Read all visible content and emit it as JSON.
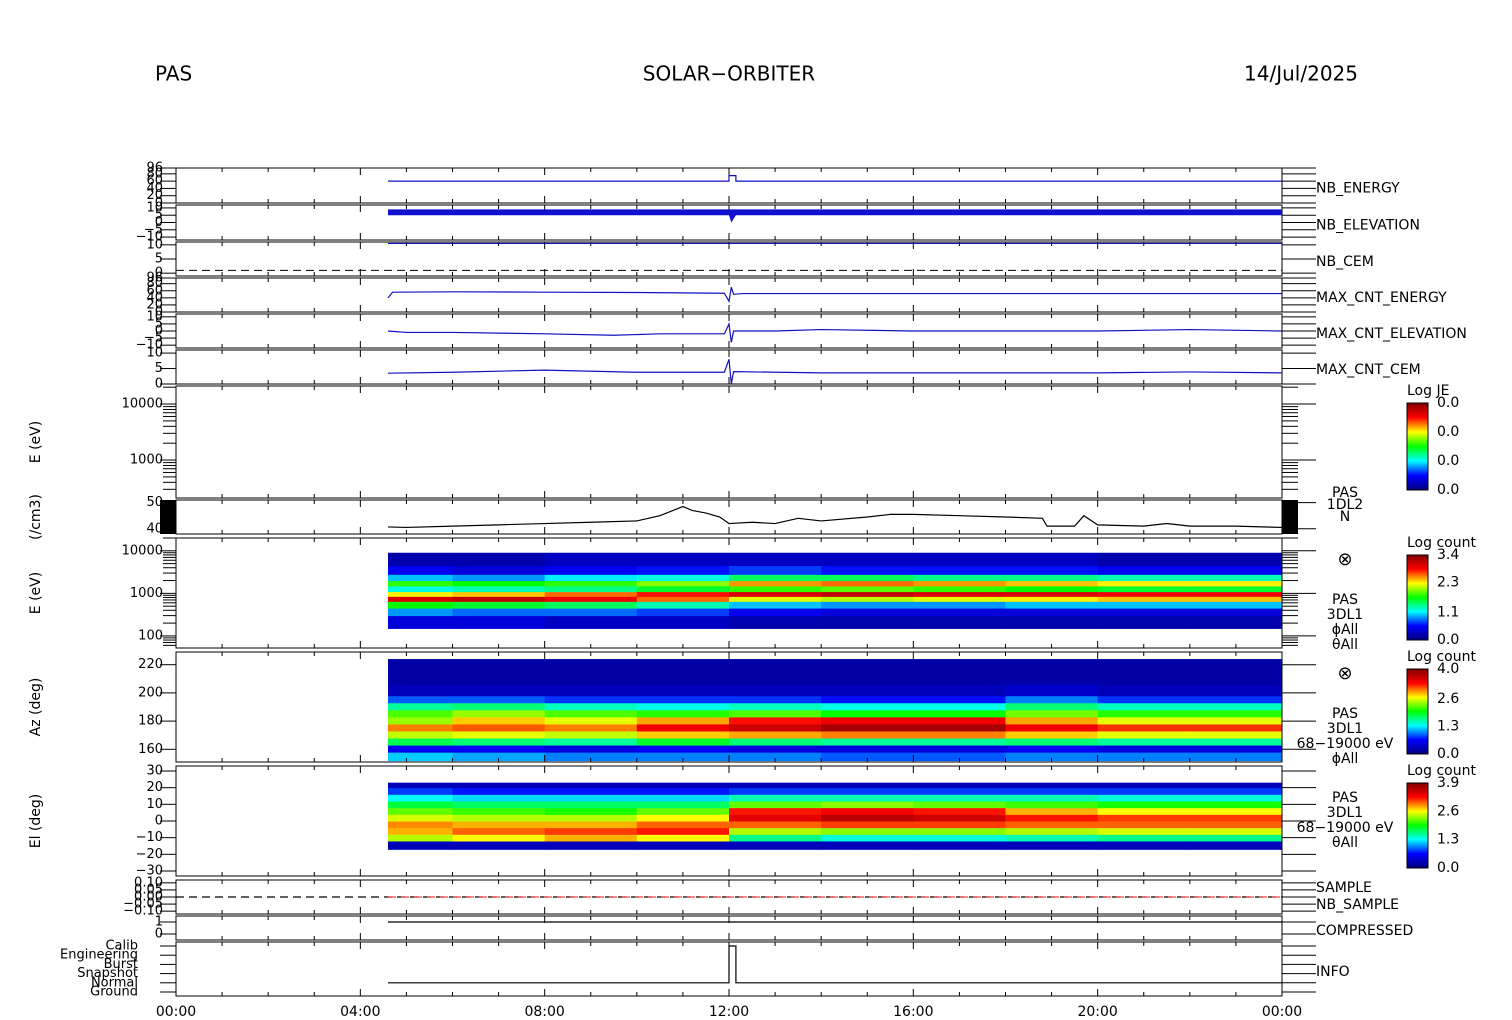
{
  "header": {
    "left": "PAS",
    "center": "SOLAR−ORBITER",
    "right": "14/Jul/2025"
  },
  "time_axis": {
    "xlim": [
      0,
      24
    ],
    "xticks": [
      {
        "value": 0,
        "label": "00:00"
      },
      {
        "value": 4,
        "label": "04:00"
      },
      {
        "value": 8,
        "label": "08:00"
      },
      {
        "value": 12,
        "label": "12:00"
      },
      {
        "value": 16,
        "label": "16:00"
      },
      {
        "value": 20,
        "label": "20:00"
      },
      {
        "value": 24,
        "label": "00:00"
      }
    ]
  },
  "colormap": [
    "#000080",
    "#0000ff",
    "#00ffff",
    "#00ff00",
    "#ffff00",
    "#ff0000",
    "#800000"
  ],
  "chart_data": [
    {
      "type": "line",
      "label": "NB_ENERGY",
      "label_color": "#2020c0",
      "ylim": [
        0,
        96
      ],
      "yticks": [
        0,
        20,
        40,
        60,
        80,
        96
      ],
      "series": [
        {
          "color": "#1010c0",
          "x": [
            4.6,
            12.0,
            12.0,
            12.15,
            12.15,
            24
          ],
          "values": [
            60,
            60,
            75,
            75,
            60,
            60
          ]
        }
      ]
    },
    {
      "type": "band",
      "label": "NB_ELEVATION",
      "label_color": "#2020c0",
      "color": "#1010d0",
      "ylim": [
        -12,
        12
      ],
      "yticks": [
        {
          "value": -10,
          "label": "−10"
        },
        {
          "value": -5,
          "label": "−5"
        },
        0,
        5,
        10
      ],
      "x": [
        4.6,
        12.0,
        12.05,
        12.15,
        24
      ],
      "low": [
        5,
        5,
        0,
        5,
        5
      ],
      "high": [
        9,
        9,
        9,
        9,
        9
      ]
    },
    {
      "type": "line",
      "label": "NB_CEM",
      "label_color": "#2020c0",
      "ylim": [
        -1,
        11
      ],
      "yticks": [
        0,
        5,
        10
      ],
      "reference_line": 1,
      "series": [
        {
          "color": "#1010c0",
          "x": [
            4.6,
            24
          ],
          "values": [
            10.5,
            10.5
          ]
        }
      ]
    },
    {
      "type": "line",
      "label": "MAX_CNT_ENERGY",
      "label_color": "#2020c0",
      "ylim": [
        0,
        96
      ],
      "yticks": [
        0,
        20,
        40,
        60,
        80,
        96
      ],
      "series": [
        {
          "color": "#1010c0",
          "x": [
            4.6,
            4.7,
            6,
            8,
            10,
            11.9,
            12.0,
            12.05,
            12.1,
            12.3,
            14,
            16,
            18,
            20,
            22,
            24
          ],
          "values": [
            40,
            56,
            57,
            56,
            55,
            53,
            30,
            70,
            50,
            52,
            52,
            52,
            52,
            52,
            52,
            52
          ]
        }
      ]
    },
    {
      "type": "line",
      "label": "MAX_CNT_ELEVATION",
      "label_color": "#2020c0",
      "ylim": [
        -12,
        12
      ],
      "yticks": [
        {
          "value": -10,
          "label": "−10"
        },
        {
          "value": -5,
          "label": "−5"
        },
        0,
        5,
        10
      ],
      "series": [
        {
          "color": "#1010c0",
          "x": [
            4.6,
            5,
            6,
            8,
            9.5,
            10.5,
            11.9,
            12.0,
            12.05,
            12.1,
            13,
            14,
            16,
            18,
            20,
            22,
            24
          ],
          "values": [
            0,
            -1,
            -1,
            -2,
            -3,
            -2,
            -2,
            5,
            -8,
            0,
            0,
            1,
            0,
            0,
            0,
            1,
            0
          ]
        }
      ]
    },
    {
      "type": "line",
      "label": "MAX_CNT_CEM",
      "label_color": "#2020c0",
      "ylim": [
        0,
        11
      ],
      "yticks": [
        0,
        5,
        10
      ],
      "series": [
        {
          "color": "#1010c0",
          "x": [
            4.6,
            6,
            8,
            10,
            11.9,
            12.0,
            12.05,
            12.1,
            14,
            16,
            18,
            20,
            22,
            24
          ],
          "values": [
            3.5,
            3.8,
            4.5,
            3.8,
            3.8,
            8,
            0,
            4,
            3.6,
            3.6,
            3.6,
            3.6,
            3.9,
            3.6
          ]
        }
      ]
    },
    {
      "type": "heatmap",
      "ylabel": "E (eV)",
      "log": true,
      "ylim": [
        210,
        21000
      ],
      "yticks": [
        1000,
        10000
      ],
      "colorbar_title": "Log JE",
      "colorbar_labels": [
        "0.0",
        "0.0",
        "0.0",
        "0.0"
      ],
      "values": []
    },
    {
      "type": "line",
      "ylabel": "(/cm3)",
      "ylim": [
        38,
        51
      ],
      "yticks": [
        40,
        50
      ],
      "mask_color": "#000000",
      "side_labels": [
        "PAS",
        "1DL2",
        "N"
      ],
      "series": [
        {
          "color": "#000000",
          "x": [
            4.6,
            5,
            6,
            7,
            8,
            9,
            10,
            10.5,
            11,
            11.2,
            11.5,
            11.8,
            12,
            12.5,
            13,
            13.5,
            14,
            15,
            15.5,
            16,
            17,
            18,
            18.8,
            18.9,
            19.5,
            19.7,
            20,
            21,
            21.5,
            22,
            23,
            24
          ],
          "values": [
            40.7,
            40.5,
            41,
            41.5,
            42,
            42.5,
            43,
            45,
            48.5,
            47,
            46,
            44.5,
            42,
            42.5,
            42,
            44,
            43,
            44.5,
            45.5,
            45.5,
            45,
            44.5,
            44,
            41,
            41,
            45,
            41.5,
            41,
            42,
            41,
            41,
            40.5
          ]
        }
      ]
    },
    {
      "type": "heatmap",
      "ylabel": "E (eV)",
      "log": true,
      "ylim": [
        52,
        20000
      ],
      "yticks": [
        100,
        1000,
        10000
      ],
      "colorbar_title": "Log count",
      "clim": [
        0,
        3.4
      ],
      "colorbar_ticks": [
        {
          "value": 0,
          "label": "0.0"
        },
        1.1,
        2.3,
        3.4
      ],
      "marker": "⊗",
      "side_labels": [
        "PAS",
        "3DL1",
        "ϕAll",
        "θAll"
      ],
      "x_edges": [
        4.6,
        6,
        8,
        10,
        12,
        14,
        16,
        18,
        20,
        22,
        24
      ],
      "y_edges": [
        150,
        300,
        450,
        650,
        850,
        1100,
        1500,
        2000,
        2800,
        4500,
        9000
      ],
      "values": [
        [
          0.4,
          0.9,
          1.7,
          3.0,
          2.3,
          1.2,
          1.8,
          1.0,
          0.5,
          0.2
        ],
        [
          0.4,
          0.8,
          1.6,
          3.1,
          2.4,
          1.3,
          1.7,
          0.9,
          0.4,
          0.2
        ],
        [
          0.3,
          0.8,
          1.5,
          2.9,
          2.6,
          1.4,
          1.8,
          1.1,
          0.5,
          0.3
        ],
        [
          0.3,
          0.7,
          1.3,
          2.6,
          2.8,
          1.6,
          2.0,
          1.2,
          0.6,
          0.3
        ],
        [
          0.2,
          0.5,
          1.0,
          2.2,
          3.0,
          1.8,
          2.5,
          1.5,
          0.7,
          0.3
        ],
        [
          0.2,
          0.4,
          0.9,
          2.1,
          3.1,
          1.9,
          2.6,
          1.5,
          0.6,
          0.3
        ],
        [
          0.2,
          0.4,
          0.9,
          2.2,
          3.0,
          1.8,
          2.5,
          1.4,
          0.6,
          0.3
        ],
        [
          0.2,
          0.4,
          1.0,
          2.3,
          3.0,
          1.7,
          2.4,
          1.4,
          0.6,
          0.3
        ],
        [
          0.2,
          0.4,
          1.0,
          2.4,
          2.9,
          1.6,
          2.3,
          1.3,
          0.5,
          0.2
        ],
        [
          0.2,
          0.4,
          1.0,
          2.4,
          2.9,
          1.6,
          2.3,
          1.3,
          0.5,
          0.2
        ]
      ]
    },
    {
      "type": "heatmap",
      "ylabel": "Az (deg)",
      "ylim": [
        151,
        229
      ],
      "yticks": [
        160,
        180,
        200,
        220
      ],
      "colorbar_title": "Log count",
      "clim": [
        0,
        4.0
      ],
      "colorbar_ticks": [
        {
          "value": 0,
          "label": "0.0"
        },
        1.3,
        2.6,
        {
          "value": 4.0,
          "label": "4.0"
        }
      ],
      "marker": "⊗",
      "side_labels": [
        "PAS",
        "3DL1",
        "68−19000 eV",
        "ϕAll"
      ],
      "x_edges": [
        4.6,
        6,
        8,
        10,
        12,
        14,
        16,
        18,
        20,
        22,
        24
      ],
      "y_edges": [
        152,
        158,
        163,
        168,
        173,
        178,
        183,
        188,
        193,
        198,
        206,
        224
      ],
      "values": [
        [
          1.2,
          0.6,
          1.8,
          2.5,
          3.0,
          2.4,
          2.2,
          1.6,
          0.9,
          0.3,
          0.2
        ],
        [
          1.1,
          0.6,
          1.7,
          2.6,
          3.1,
          2.8,
          2.4,
          1.7,
          0.9,
          0.3,
          0.2
        ],
        [
          1.0,
          0.5,
          1.6,
          2.5,
          3.0,
          2.6,
          2.2,
          1.5,
          0.8,
          0.3,
          0.2
        ],
        [
          1.0,
          0.6,
          1.9,
          2.8,
          3.4,
          2.9,
          2.1,
          1.4,
          0.8,
          0.3,
          0.2
        ],
        [
          1.0,
          0.5,
          1.7,
          2.9,
          3.6,
          3.3,
          2.2,
          1.5,
          0.8,
          0.3,
          0.2
        ],
        [
          0.9,
          0.5,
          1.6,
          3.0,
          3.8,
          3.4,
          2.0,
          1.4,
          0.7,
          0.3,
          0.2
        ],
        [
          0.9,
          0.5,
          1.6,
          3.0,
          3.8,
          3.4,
          2.0,
          1.4,
          0.7,
          0.3,
          0.2
        ],
        [
          1.0,
          0.6,
          1.7,
          2.8,
          3.4,
          2.9,
          2.3,
          1.7,
          1.0,
          0.4,
          0.2
        ],
        [
          1.0,
          0.5,
          1.6,
          2.6,
          3.2,
          2.6,
          2.1,
          1.5,
          0.8,
          0.3,
          0.2
        ],
        [
          1.0,
          0.5,
          1.6,
          2.6,
          3.2,
          2.6,
          2.1,
          1.5,
          0.8,
          0.3,
          0.2
        ]
      ]
    },
    {
      "type": "heatmap",
      "ylabel": "El (deg)",
      "ylim": [
        -33,
        33
      ],
      "yticks": [
        {
          "value": -30,
          "label": "−30"
        },
        {
          "value": -20,
          "label": "−20"
        },
        {
          "value": -10,
          "label": "−10"
        },
        0,
        10,
        20,
        30
      ],
      "colorbar_title": "Log count",
      "clim": [
        0,
        3.9
      ],
      "colorbar_ticks": [
        {
          "value": 0,
          "label": "0.0"
        },
        1.3,
        2.6,
        3.9
      ],
      "side_labels": [
        "PAS",
        "3DL1",
        "68−19000 eV",
        "θAll"
      ],
      "x_edges": [
        4.6,
        6,
        8,
        10,
        12,
        14,
        16,
        18,
        20,
        22,
        24
      ],
      "y_edges": [
        -17,
        -12,
        -8,
        -4,
        0,
        4,
        8,
        12,
        16,
        20,
        23
      ],
      "values": [
        [
          0.3,
          2.4,
          2.8,
          2.9,
          2.5,
          2.2,
          1.8,
          1.3,
          0.8,
          0.3
        ],
        [
          0.3,
          2.6,
          3.0,
          2.8,
          2.4,
          2.1,
          1.7,
          1.2,
          0.7,
          0.3
        ],
        [
          0.3,
          2.8,
          3.1,
          2.8,
          2.4,
          2.0,
          1.7,
          1.2,
          0.7,
          0.3
        ],
        [
          0.3,
          2.6,
          3.2,
          3.0,
          2.6,
          2.2,
          1.7,
          1.2,
          0.7,
          0.3
        ],
        [
          0.3,
          1.6,
          2.4,
          3.0,
          3.4,
          3.2,
          2.2,
          1.5,
          0.8,
          0.3
        ],
        [
          0.3,
          1.4,
          2.3,
          3.1,
          3.6,
          3.3,
          2.3,
          1.5,
          0.8,
          0.3
        ],
        [
          0.3,
          1.4,
          2.3,
          3.1,
          3.5,
          3.2,
          2.2,
          1.5,
          0.8,
          0.3
        ],
        [
          0.3,
          1.5,
          2.4,
          3.0,
          3.2,
          2.8,
          2.1,
          1.5,
          0.8,
          0.3
        ],
        [
          0.3,
          1.6,
          2.5,
          3.0,
          3.1,
          2.6,
          2.0,
          1.4,
          0.8,
          0.3
        ],
        [
          0.3,
          1.6,
          2.5,
          3.0,
          3.1,
          2.6,
          2.0,
          1.4,
          0.8,
          0.3
        ]
      ]
    },
    {
      "type": "line",
      "ylim": [
        -0.12,
        0.12
      ],
      "yticks": [
        {
          "value": -0.1,
          "label": "−0.10"
        },
        {
          "value": -0.05,
          "label": "−0.05"
        },
        {
          "value": 0,
          "label": "0.00"
        },
        {
          "value": 0.05,
          "label": "0.05"
        },
        {
          "value": 0.1,
          "label": "0.10"
        }
      ],
      "label_colors": [
        "#2020c0",
        "#ff2020"
      ],
      "series": [
        {
          "name": "SAMPLE",
          "color": "#000000",
          "dash": true,
          "x": [
            0,
            24
          ],
          "values": [
            0,
            0
          ]
        },
        {
          "name": "NB_SAMPLE",
          "color": "#ff4040",
          "dash": true,
          "x": [
            4.6,
            24
          ],
          "values": [
            0,
            0
          ]
        }
      ]
    },
    {
      "type": "line",
      "label": "COMPRESSED",
      "label_color": "#2020c0",
      "ylim": [
        -0.5,
        1.5
      ],
      "yticks": [
        0,
        1
      ],
      "series": [
        {
          "color": "#000000",
          "x": [
            4.6,
            24
          ],
          "values": [
            1,
            1
          ]
        }
      ]
    },
    {
      "type": "category_line",
      "label": "INFO",
      "label_color": "#000000",
      "categories": [
        "Ground",
        "Normal",
        "Snapshot",
        "Burst",
        "Engineering",
        "Calib"
      ],
      "x": [
        4.6,
        12.0,
        12.0,
        12.15,
        12.15,
        24
      ],
      "values": [
        "Normal",
        "Normal",
        "Calib",
        "Calib",
        "Normal",
        "Normal"
      ]
    }
  ]
}
